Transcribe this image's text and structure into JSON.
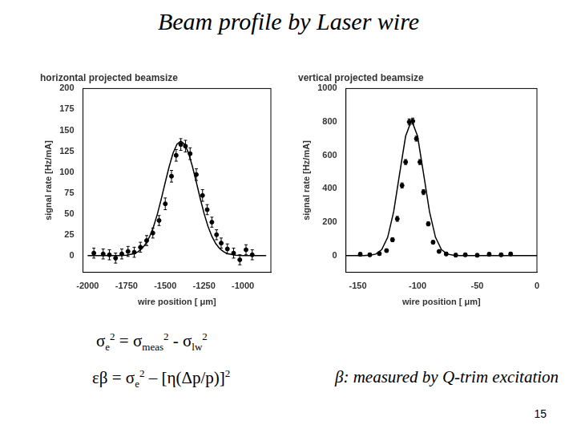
{
  "header": {
    "title": "Beam profile by Laser wire"
  },
  "formulas": [
    [
      {
        "text": "σ",
        "sub": "e",
        "sup": "2"
      },
      {
        "text": " = σ",
        "sub": "meas",
        "sup": "2"
      },
      {
        "text": " - σ",
        "sub": "lw",
        "sup": "2"
      }
    ],
    [
      {
        "text": "εβ = σ",
        "sub": "e",
        "sup": "2"
      },
      {
        "text": " – [η(Δp/p)]",
        "sup": "2"
      }
    ]
  ],
  "note": "β: measured by Q-trim excitation",
  "page": "15",
  "chart_data": [
    {
      "type": "scatter",
      "title": "horizontal projected beamsize",
      "x_label": "wire position [ μm]",
      "y_label": "signal rate [Hz/mA]",
      "xlim": [
        -2030,
        -820
      ],
      "xticks": [
        -2000,
        -1750,
        -1500,
        -1250,
        -1000
      ],
      "ylim": [
        -20,
        200
      ],
      "yticks": [
        0,
        25,
        50,
        75,
        100,
        125,
        150,
        175,
        200
      ],
      "grid": false,
      "series": [
        {
          "type": "scatter",
          "marker": "circle",
          "color": "#000000",
          "x": [
            -1960,
            -1900,
            -1860,
            -1820,
            -1780,
            -1740,
            -1700,
            -1660,
            -1620,
            -1580,
            -1540,
            -1500,
            -1460,
            -1430,
            -1400,
            -1370,
            -1340,
            -1300,
            -1260,
            -1230,
            -1200,
            -1170,
            -1140,
            -1100,
            -1060,
            -1020,
            -980,
            -940
          ],
          "values": [
            3,
            2,
            1,
            -3,
            2,
            5,
            4,
            10,
            18,
            27,
            42,
            62,
            95,
            120,
            133,
            131,
            122,
            97,
            72,
            55,
            40,
            25,
            15,
            8,
            3,
            -5,
            7,
            1
          ],
          "errors": [
            6,
            6,
            6,
            6,
            6,
            6,
            6,
            6,
            6,
            6,
            6,
            7,
            7,
            7,
            7,
            7,
            7,
            7,
            7,
            6,
            6,
            6,
            6,
            6,
            6,
            6,
            6,
            6
          ]
        },
        {
          "type": "line",
          "line_style": "solid",
          "color": "#000000",
          "x": [
            -2000,
            -1950,
            -1900,
            -1850,
            -1800,
            -1750,
            -1700,
            -1675,
            -1650,
            -1625,
            -1600,
            -1575,
            -1550,
            -1525,
            -1500,
            -1475,
            -1450,
            -1425,
            -1400,
            -1375,
            -1350,
            -1325,
            -1300,
            -1275,
            -1250,
            -1225,
            -1200,
            -1175,
            -1150,
            -1125,
            -1100,
            -1050,
            -1000,
            -950,
            -900,
            -850
          ],
          "values": [
            0,
            0,
            0,
            0,
            0.1,
            0.6,
            2.5,
            4.7,
            8.5,
            14.4,
            23.1,
            35.1,
            50.3,
            68.4,
            87.8,
            106.6,
            122.6,
            133.3,
            137,
            133.3,
            122.6,
            106.6,
            87.8,
            68.4,
            50.3,
            35.1,
            23.1,
            14.4,
            8.5,
            4.7,
            2.5,
            0.6,
            0.1,
            0,
            0,
            0
          ]
        }
      ]
    },
    {
      "type": "scatter",
      "title": "vertical projected beamsize",
      "x_label": "wire position [ μm]",
      "y_label": "signal rate [Hz/mA]",
      "xlim": [
        -160,
        0
      ],
      "xticks": [
        -150,
        -100,
        -50,
        0
      ],
      "ylim": [
        -100,
        1000
      ],
      "yticks": [
        0,
        200,
        400,
        600,
        800,
        1000
      ],
      "grid": false,
      "series": [
        {
          "type": "scatter",
          "marker": "circle",
          "color": "#000000",
          "x": [
            -148,
            -140,
            -132,
            -126,
            -121,
            -117,
            -113,
            -110,
            -107,
            -104,
            -101,
            -98,
            -95,
            -91,
            -87,
            -82,
            -76,
            -68,
            -60,
            -50,
            -40,
            -30,
            -22
          ],
          "values": [
            8,
            5,
            12,
            30,
            95,
            220,
            420,
            560,
            800,
            805,
            700,
            560,
            380,
            190,
            80,
            25,
            10,
            3,
            5,
            2,
            8,
            5,
            10
          ],
          "errors": [
            10,
            10,
            10,
            10,
            12,
            15,
            15,
            15,
            18,
            18,
            15,
            15,
            15,
            12,
            10,
            10,
            10,
            10,
            10,
            10,
            10,
            10,
            10
          ]
        },
        {
          "type": "line",
          "line_style": "solid",
          "color": "#000000",
          "x": [
            -160,
            -150,
            -145,
            -140,
            -135,
            -130,
            -125,
            -120,
            -115,
            -110,
            -105,
            -100,
            -95,
            -90,
            -85,
            -80,
            -75,
            -70,
            -65,
            -60,
            -50,
            -40,
            -20,
            0
          ],
          "values": [
            0,
            0,
            0,
            2,
            9,
            36,
            110,
            263,
            491,
            715,
            810,
            715,
            491,
            263,
            110,
            36,
            9,
            2,
            0,
            0,
            0,
            0,
            0,
            0
          ]
        }
      ]
    }
  ]
}
